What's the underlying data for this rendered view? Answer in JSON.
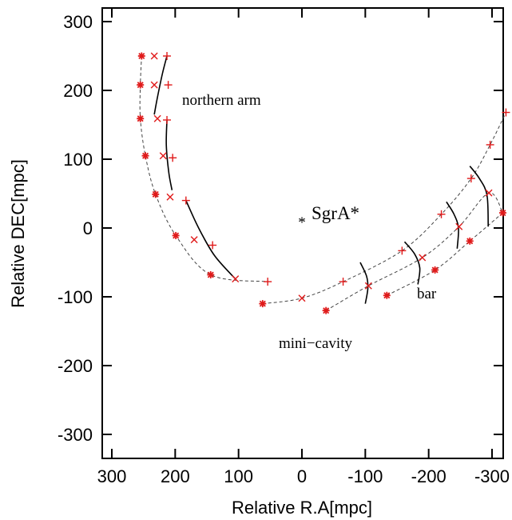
{
  "chart_data": {
    "type": "scatter",
    "title": "",
    "xlabel": "Relative R.A[mpc]",
    "ylabel": "Relative DEC[mpc]",
    "xlim": [
      320,
      -320
    ],
    "ylim": [
      -320,
      320
    ],
    "xticks": [
      "300",
      "200",
      "100",
      "0",
      "-100",
      "-200",
      "-300"
    ],
    "yticks": [
      "300",
      "200",
      "100",
      "0",
      "-100",
      "-200",
      "-300"
    ],
    "grid": false,
    "colors": {
      "marker": "#e01a1a",
      "curve": "#444444",
      "arc": "#000000"
    },
    "markers_star": [
      {
        "x": 253,
        "y": 250
      },
      {
        "x": 255,
        "y": 208
      },
      {
        "x": 255,
        "y": 159
      },
      {
        "x": 247,
        "y": 105
      },
      {
        "x": 231,
        "y": 49
      },
      {
        "x": 199,
        "y": -11
      },
      {
        "x": 144,
        "y": -68
      },
      {
        "x": 62,
        "y": -110
      },
      {
        "x": -38,
        "y": -120
      },
      {
        "x": -134,
        "y": -98
      },
      {
        "x": -210,
        "y": -61
      },
      {
        "x": -265,
        "y": -19
      },
      {
        "x": -317,
        "y": 22
      }
    ],
    "markers_cross": [
      {
        "x": 233,
        "y": 250
      },
      {
        "x": 233,
        "y": 208
      },
      {
        "x": 228,
        "y": 159
      },
      {
        "x": 219,
        "y": 105
      },
      {
        "x": 208,
        "y": 45
      },
      {
        "x": 170,
        "y": -17
      },
      {
        "x": 105,
        "y": -74
      },
      {
        "x": 0,
        "y": -102
      },
      {
        "x": -105,
        "y": -84
      },
      {
        "x": -190,
        "y": -43
      },
      {
        "x": -248,
        "y": 2
      },
      {
        "x": -295,
        "y": 51
      }
    ],
    "markers_plus": [
      {
        "x": 213,
        "y": 250
      },
      {
        "x": 211,
        "y": 208
      },
      {
        "x": 213,
        "y": 157
      },
      {
        "x": 204,
        "y": 102
      },
      {
        "x": 183,
        "y": 40
      },
      {
        "x": 141,
        "y": -25
      },
      {
        "x": 54,
        "y": -78
      },
      {
        "x": -65,
        "y": -78
      },
      {
        "x": -158,
        "y": -33
      },
      {
        "x": -220,
        "y": 20
      },
      {
        "x": -267,
        "y": 72
      },
      {
        "x": -297,
        "y": 121
      },
      {
        "x": -322,
        "y": 168
      }
    ],
    "northern_arm_curve": [
      {
        "x": 253,
        "y": 250
      },
      {
        "x": 255,
        "y": 208
      },
      {
        "x": 255,
        "y": 159
      },
      {
        "x": 247,
        "y": 105
      },
      {
        "x": 231,
        "y": 49
      },
      {
        "x": 199,
        "y": -11
      },
      {
        "x": 144,
        "y": -68
      },
      {
        "x": 54,
        "y": -78
      }
    ],
    "inner_curve": [
      {
        "x": 62,
        "y": -110
      },
      {
        "x": 0,
        "y": -102
      },
      {
        "x": -65,
        "y": -78
      },
      {
        "x": -158,
        "y": -33
      },
      {
        "x": -220,
        "y": 20
      },
      {
        "x": -267,
        "y": 72
      },
      {
        "x": -297,
        "y": 121
      },
      {
        "x": -322,
        "y": 168
      }
    ],
    "outer_curve": [
      {
        "x": -38,
        "y": -120
      },
      {
        "x": -105,
        "y": -84
      },
      {
        "x": -190,
        "y": -43
      },
      {
        "x": -248,
        "y": 2
      },
      {
        "x": -295,
        "y": 51
      },
      {
        "x": -317,
        "y": 22
      }
    ],
    "outer_curve2": [
      {
        "x": -134,
        "y": -98
      },
      {
        "x": -210,
        "y": -61
      },
      {
        "x": -265,
        "y": -19
      },
      {
        "x": -317,
        "y": 22
      }
    ],
    "solid_arcs": [
      [
        {
          "x": 213,
          "y": 250
        },
        {
          "x": 220,
          "y": 225
        },
        {
          "x": 228,
          "y": 190
        },
        {
          "x": 233,
          "y": 165
        }
      ],
      [
        {
          "x": 213,
          "y": 157
        },
        {
          "x": 214,
          "y": 120
        },
        {
          "x": 210,
          "y": 80
        },
        {
          "x": 205,
          "y": 55
        }
      ],
      [
        {
          "x": 183,
          "y": 40
        },
        {
          "x": 163,
          "y": 0
        },
        {
          "x": 138,
          "y": -40
        },
        {
          "x": 105,
          "y": -74
        }
      ],
      [
        {
          "x": -92,
          "y": -50
        },
        {
          "x": -102,
          "y": -70
        },
        {
          "x": -104,
          "y": -88
        },
        {
          "x": -100,
          "y": -110
        }
      ],
      [
        {
          "x": -162,
          "y": -20
        },
        {
          "x": -178,
          "y": -38
        },
        {
          "x": -186,
          "y": -58
        },
        {
          "x": -183,
          "y": -82
        }
      ],
      [
        {
          "x": -228,
          "y": 38
        },
        {
          "x": -240,
          "y": 20
        },
        {
          "x": -247,
          "y": 0
        },
        {
          "x": -245,
          "y": -30
        }
      ],
      [
        {
          "x": -265,
          "y": 90
        },
        {
          "x": -280,
          "y": 72
        },
        {
          "x": -292,
          "y": 48
        },
        {
          "x": -294,
          "y": 2
        }
      ]
    ],
    "annotations": {
      "northern_arm": "northern arm",
      "sgra": "SgrA*",
      "bar": "bar",
      "mini_cavity": "mini−cavity"
    }
  }
}
